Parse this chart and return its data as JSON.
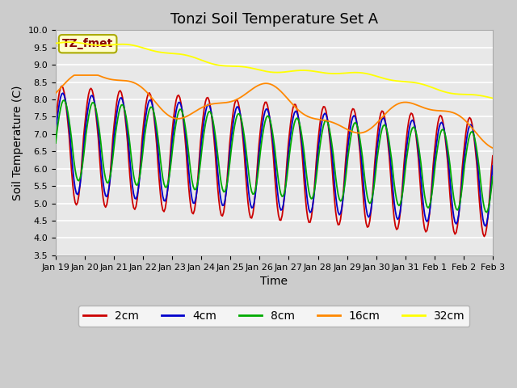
{
  "title": "Tonzi Soil Temperature Set A",
  "xlabel": "Time",
  "ylabel": "Soil Temperature (C)",
  "ylim": [
    3.5,
    10.0
  ],
  "yticks": [
    3.5,
    4.0,
    4.5,
    5.0,
    5.5,
    6.0,
    6.5,
    7.0,
    7.5,
    8.0,
    8.5,
    9.0,
    9.5,
    10.0
  ],
  "xtick_labels": [
    "Jan 19",
    "Jan 20",
    "Jan 21",
    "Jan 22",
    "Jan 23",
    "Jan 24",
    "Jan 25",
    "Jan 26",
    "Jan 27",
    "Jan 28",
    "Jan 29",
    "Jan 30",
    "Jan 31",
    "Feb 1",
    "Feb 2",
    "Feb 3"
  ],
  "colors": {
    "2cm": "#cc0000",
    "4cm": "#0000cc",
    "8cm": "#00aa00",
    "16cm": "#ff8800",
    "32cm": "#ffff00"
  },
  "legend_labels": [
    "2cm",
    "4cm",
    "8cm",
    "16cm",
    "32cm"
  ],
  "plot_bg_color": "#e8e8e8",
  "annotation_text": "TZ_fmet",
  "annotation_color": "#880000",
  "annotation_bg": "#ffffcc",
  "title_fontsize": 13,
  "axis_fontsize": 10,
  "tick_fontsize": 8
}
